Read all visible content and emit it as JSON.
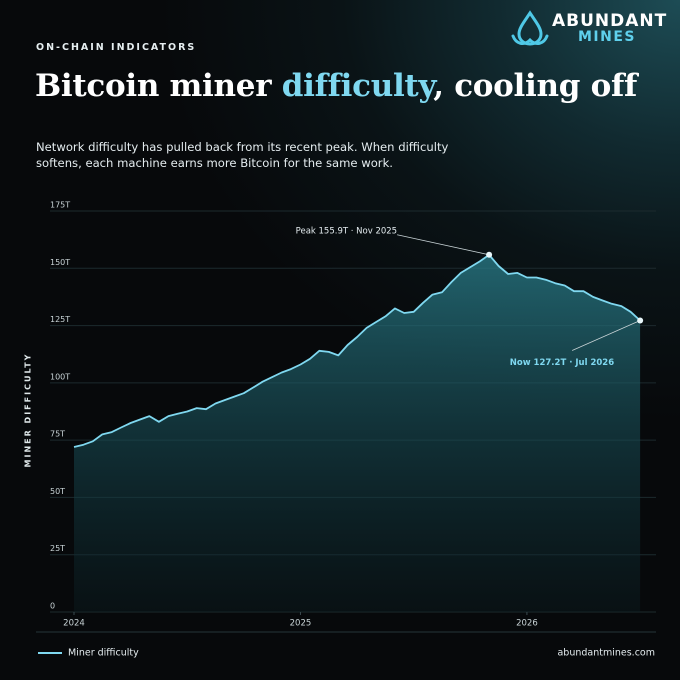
{
  "kicker": "ON-CHAIN INDICATORS",
  "brand": {
    "top": "ABUNDANT",
    "bottom": "MINES"
  },
  "title_parts": [
    "Bitcoin miner ",
    "difficulty",
    ", cooling off"
  ],
  "subtitle": "Network difficulty has pulled back from its recent peak. When difficulty softens, each machine earns more Bitcoin for the same work.",
  "footer": "abundantmines.com",
  "chart_data": {
    "type": "area",
    "ylabel": "MINER DIFFICULTY",
    "x": [
      2024,
      2024.042,
      2024.083,
      2024.125,
      2024.167,
      2024.208,
      2024.25,
      2024.292,
      2024.333,
      2024.375,
      2024.417,
      2024.458,
      2024.5,
      2024.542,
      2024.583,
      2024.625,
      2024.667,
      2024.708,
      2024.75,
      2024.792,
      2024.833,
      2024.875,
      2024.917,
      2024.958,
      2025,
      2025.042,
      2025.083,
      2025.125,
      2025.167,
      2025.208,
      2025.25,
      2025.292,
      2025.333,
      2025.375,
      2025.417,
      2025.458,
      2025.5,
      2025.542,
      2025.583,
      2025.625,
      2025.667,
      2025.708,
      2025.75,
      2025.792,
      2025.833,
      2025.875,
      2025.917,
      2025.958,
      2026,
      2026.042,
      2026.083,
      2026.125,
      2026.167,
      2026.208,
      2026.25,
      2026.292,
      2026.333,
      2026.375,
      2026.417,
      2026.458,
      2026.5
    ],
    "series": [
      {
        "name": "Miner difficulty",
        "color": "#7fd8f0",
        "values": [
          72,
          73,
          74.5,
          77.5,
          78.5,
          80.5,
          82.5,
          84,
          85.5,
          83,
          85.5,
          86.5,
          87.5,
          89,
          88.5,
          91,
          92.5,
          94,
          95.5,
          98,
          100.5,
          102.5,
          104.5,
          106,
          108,
          110.5,
          114,
          113.5,
          112,
          116.5,
          120,
          124,
          126.5,
          129,
          132.5,
          130.5,
          131,
          135,
          138.5,
          139.5,
          144,
          148,
          150.5,
          153,
          155.9,
          151,
          147.5,
          148,
          146,
          146,
          145,
          143.5,
          142.5,
          140,
          140,
          137.5,
          136,
          134.5,
          133.5,
          131,
          127.2
        ]
      }
    ],
    "annotations": [
      "Peak 155.9T · Nov 2025",
      "Now 127.2T · Jul 2026"
    ],
    "xlim": [
      2024,
      2026.57
    ],
    "xticks": [
      2024,
      2025,
      2026
    ],
    "ylim": [
      0,
      175
    ],
    "yticks": [
      0,
      {
        "value": 25,
        "label": "25T"
      },
      {
        "value": 50,
        "label": "50T"
      },
      {
        "value": 75,
        "label": "75T"
      },
      {
        "value": 100,
        "label": "100T"
      },
      {
        "value": 125,
        "label": "125T"
      },
      {
        "value": 150,
        "label": "150T"
      },
      {
        "value": 175,
        "label": "175T"
      }
    ],
    "grid": true,
    "legend": "bottom-left"
  }
}
